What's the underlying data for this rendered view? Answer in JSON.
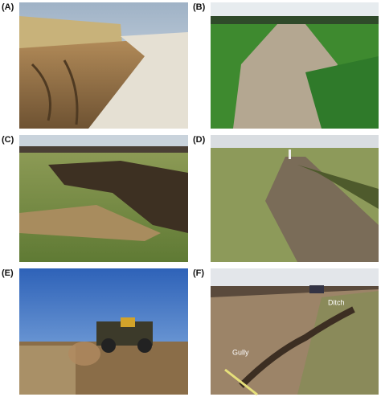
{
  "panels": [
    {
      "label": "(A)"
    },
    {
      "label": "(B)"
    },
    {
      "label": "(C)"
    },
    {
      "label": "(D)"
    },
    {
      "label": "(E)"
    },
    {
      "label": "(F)",
      "annotations": [
        "Ditch",
        "Gully"
      ]
    }
  ]
}
